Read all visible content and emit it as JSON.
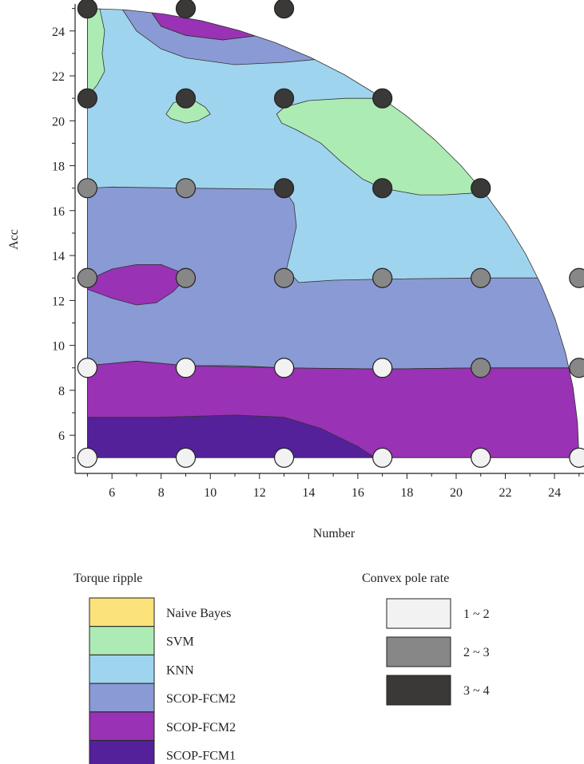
{
  "chart_data": {
    "type": "contour",
    "xlabel": "Number",
    "ylabel": "Acc",
    "xlim": [
      4.5,
      25.2
    ],
    "ylim": [
      4.3,
      25.2
    ],
    "x_ticks": [
      6,
      8,
      10,
      12,
      14,
      16,
      18,
      20,
      22,
      24
    ],
    "y_ticks": [
      6,
      8,
      10,
      12,
      14,
      16,
      18,
      20,
      22,
      24
    ],
    "torque_legend": {
      "title": "Torque ripple",
      "entries": [
        {
          "label": "Naive Bayes",
          "color": "#fce27a"
        },
        {
          "label": "SVM",
          "color": "#adebb4"
        },
        {
          "label": "KNN",
          "color": "#9fd4ee"
        },
        {
          "label": "SCOP-FCM2",
          "color": "#8a9ad4"
        },
        {
          "label": "SCOP-FCM2",
          "color": "#9932b4"
        },
        {
          "label": "SCOP-FCM1",
          "color": "#54219b"
        }
      ]
    },
    "pole_legend": {
      "title": "Convex pole rate",
      "entries": [
        {
          "label": "1 ~ 2",
          "color": "#f2f2f2"
        },
        {
          "label": "2 ~ 3",
          "color": "#878787"
        },
        {
          "label": "3 ~ 4",
          "color": "#3b3838"
        }
      ]
    },
    "points": [
      {
        "x": 5,
        "y": 25,
        "cls": 2
      },
      {
        "x": 9,
        "y": 25,
        "cls": 2
      },
      {
        "x": 13,
        "y": 25,
        "cls": 2
      },
      {
        "x": 5,
        "y": 21,
        "cls": 2
      },
      {
        "x": 9,
        "y": 21,
        "cls": 2
      },
      {
        "x": 13,
        "y": 21,
        "cls": 2
      },
      {
        "x": 17,
        "y": 21,
        "cls": 2
      },
      {
        "x": 5,
        "y": 17,
        "cls": 1
      },
      {
        "x": 9,
        "y": 17,
        "cls": 1
      },
      {
        "x": 13,
        "y": 17,
        "cls": 2
      },
      {
        "x": 17,
        "y": 17,
        "cls": 2
      },
      {
        "x": 21,
        "y": 17,
        "cls": 2
      },
      {
        "x": 5,
        "y": 13,
        "cls": 1
      },
      {
        "x": 9,
        "y": 13,
        "cls": 1
      },
      {
        "x": 13,
        "y": 13,
        "cls": 1
      },
      {
        "x": 17,
        "y": 13,
        "cls": 1
      },
      {
        "x": 21,
        "y": 13,
        "cls": 1
      },
      {
        "x": 25,
        "y": 13,
        "cls": 1
      },
      {
        "x": 5,
        "y": 9,
        "cls": 0
      },
      {
        "x": 9,
        "y": 9,
        "cls": 0
      },
      {
        "x": 13,
        "y": 9,
        "cls": 0
      },
      {
        "x": 17,
        "y": 9,
        "cls": 0
      },
      {
        "x": 21,
        "y": 9,
        "cls": 1
      },
      {
        "x": 25,
        "y": 9,
        "cls": 1
      },
      {
        "x": 5,
        "y": 5,
        "cls": 0
      },
      {
        "x": 9,
        "y": 5,
        "cls": 0
      },
      {
        "x": 13,
        "y": 5,
        "cls": 0
      },
      {
        "x": 17,
        "y": 5,
        "cls": 0
      },
      {
        "x": 21,
        "y": 5,
        "cls": 0
      },
      {
        "x": 25,
        "y": 5,
        "cls": 0
      }
    ],
    "point_colors": [
      "#f2f2f2",
      "#878787",
      "#3b3838"
    ]
  }
}
